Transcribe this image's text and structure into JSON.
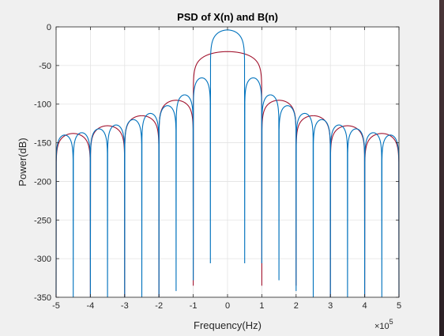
{
  "chart_data": {
    "type": "line",
    "title": "PSD of X(n) and B(n)",
    "xlabel": "Frequency(Hz)",
    "ylabel": "Power(dB)",
    "x_multiplier_label": "×10",
    "x_multiplier_exponent": "5",
    "xlim": [
      -5,
      5
    ],
    "ylim": [
      -350,
      0
    ],
    "x_unit_scale": 100000,
    "xticks": [
      -5,
      -4,
      -3,
      -2,
      -1,
      0,
      1,
      2,
      3,
      4,
      5
    ],
    "xtick_labels": [
      "-5",
      "-4",
      "-3",
      "-2",
      "-1",
      "0",
      "1",
      "2",
      "3",
      "4",
      "5"
    ],
    "yticks": [
      0,
      -50,
      -100,
      -150,
      -200,
      -250,
      -300,
      -350
    ],
    "ytick_labels": [
      "0",
      "-50",
      "-100",
      "-150",
      "-200",
      "-250",
      "-300",
      "-350"
    ],
    "grid": true,
    "legend": "none",
    "series": [
      {
        "color": "#a2142f",
        "null_spacing": 1.0,
        "null_floor": -350,
        "peaks": [
          [
            -4.5,
            -138
          ],
          [
            -3.5,
            -128
          ],
          [
            -2.5,
            -115
          ],
          [
            -1.5,
            -95
          ],
          [
            0,
            -32
          ],
          [
            1.5,
            -95
          ],
          [
            2.5,
            -115
          ],
          [
            3.5,
            -128
          ],
          [
            4.5,
            -138
          ]
        ]
      },
      {
        "color": "#0072bd",
        "null_spacing": 0.5,
        "null_floor": -350,
        "peaks": [
          [
            -4.75,
            -140
          ],
          [
            -4.25,
            -137
          ],
          [
            -3.75,
            -132
          ],
          [
            -3.25,
            -127
          ],
          [
            -2.75,
            -120
          ],
          [
            -2.25,
            -112
          ],
          [
            -1.75,
            -102
          ],
          [
            -1.25,
            -88
          ],
          [
            -0.75,
            -66
          ],
          [
            0,
            -4
          ],
          [
            0.75,
            -66
          ],
          [
            1.25,
            -88
          ],
          [
            1.75,
            -102
          ],
          [
            2.25,
            -112
          ],
          [
            2.75,
            -120
          ],
          [
            3.25,
            -127
          ],
          [
            3.75,
            -132
          ],
          [
            4.25,
            -137
          ],
          [
            4.75,
            -140
          ]
        ]
      }
    ]
  }
}
